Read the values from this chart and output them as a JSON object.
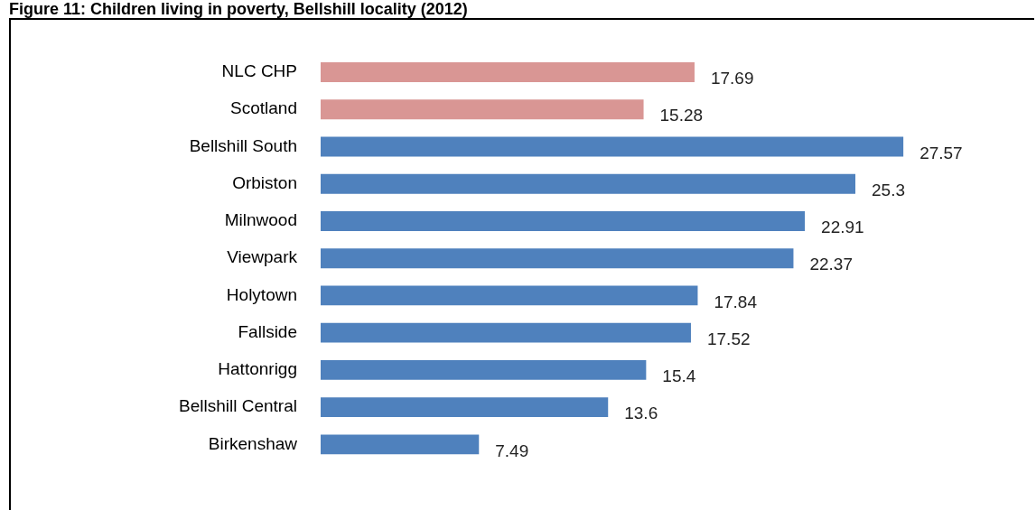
{
  "chart_data": {
    "type": "bar",
    "orientation": "horizontal",
    "title": "Figure 11: Children living in poverty, Bellshill locality (2012)",
    "categories": [
      "NLC CHP",
      "Scotland",
      "Bellshill South",
      "Orbiston",
      "Milnwood",
      "Viewpark",
      "Holytown",
      "Fallside",
      "Hattonrigg",
      "Bellshill Central",
      "Birkenshaw"
    ],
    "values": [
      17.69,
      15.28,
      27.57,
      25.3,
      22.91,
      22.37,
      17.84,
      17.52,
      15.4,
      13.6,
      7.49
    ],
    "colors": [
      "#d99694",
      "#d99694",
      "#4f81bd",
      "#4f81bd",
      "#4f81bd",
      "#4f81bd",
      "#4f81bd",
      "#4f81bd",
      "#4f81bd",
      "#4f81bd",
      "#4f81bd"
    ],
    "data_labels": true,
    "grid": false,
    "legend": false
  }
}
